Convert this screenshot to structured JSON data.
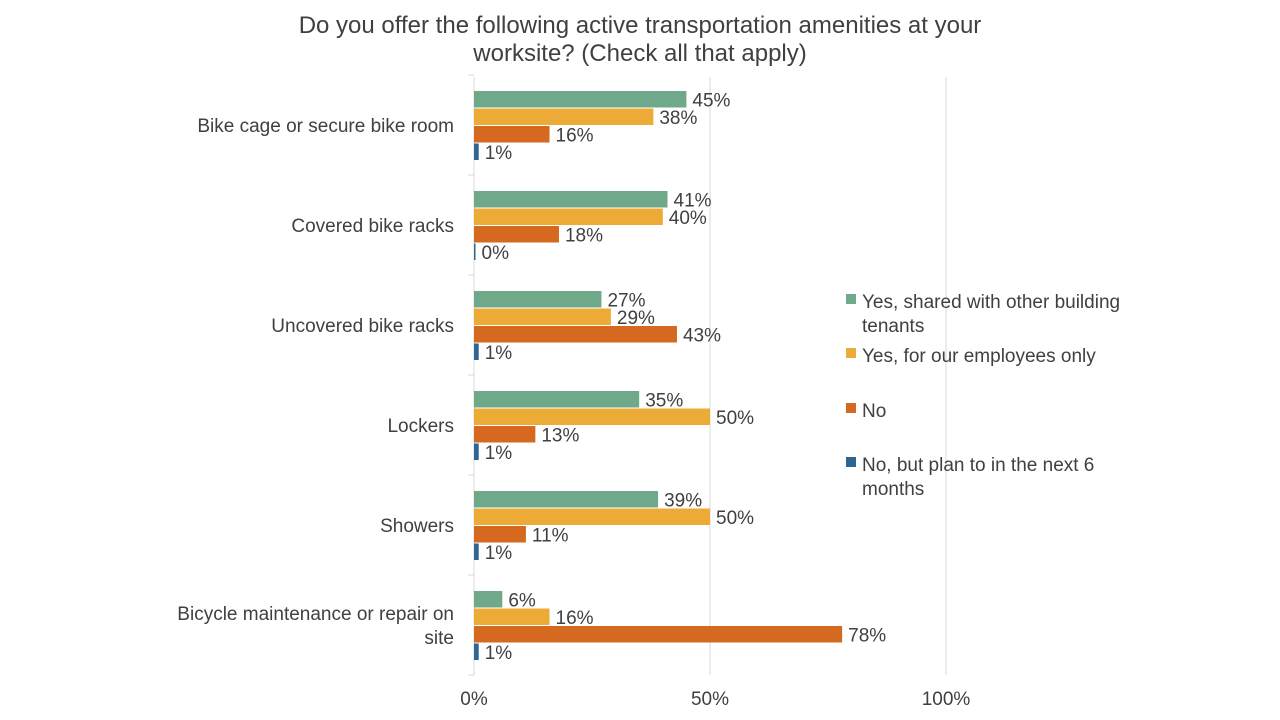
{
  "chart_data": {
    "type": "bar",
    "orientation": "horizontal",
    "title": "Do you offer the following active transportation amenities at your worksite? (Check all that apply)",
    "title_lines": [
      "Do you offer the following active transportation amenities at your",
      "worksite? (Check all that apply)"
    ],
    "categories": [
      "Bike cage or secure bike room",
      "Covered bike racks",
      "Uncovered bike racks",
      "Lockers",
      "Showers",
      "Bicycle maintenance or repair on site"
    ],
    "category_lines": [
      [
        "Bike cage or secure bike room"
      ],
      [
        "Covered bike racks"
      ],
      [
        "Uncovered bike racks"
      ],
      [
        "Lockers"
      ],
      [
        "Showers"
      ],
      [
        "Bicycle maintenance or repair on",
        "site"
      ]
    ],
    "series": [
      {
        "name": "Yes, shared with other building tenants",
        "legend_lines": [
          "Yes, shared with other building",
          "tenants"
        ],
        "color": "#6fa98a",
        "values": [
          45,
          41,
          27,
          35,
          39,
          6
        ]
      },
      {
        "name": "Yes, for our employees only",
        "legend_lines": [
          "Yes, for our employees only"
        ],
        "color": "#ebab36",
        "values": [
          38,
          40,
          29,
          50,
          50,
          16
        ]
      },
      {
        "name": "No",
        "legend_lines": [
          "No"
        ],
        "color": "#d4691f",
        "values": [
          16,
          18,
          43,
          13,
          11,
          78
        ]
      },
      {
        "name": "No, but plan to in the next 6 months",
        "legend_lines": [
          "No, but plan to in the next 6",
          "months"
        ],
        "color": "#2f6591",
        "values": [
          1,
          0,
          1,
          1,
          1,
          1
        ]
      }
    ],
    "value_suffix": "%",
    "xlim": [
      0,
      100
    ],
    "xticks": [
      0,
      50,
      100
    ],
    "xtick_labels": [
      "0%",
      "50%",
      "100%"
    ],
    "grid": true,
    "legend_position": "right"
  }
}
